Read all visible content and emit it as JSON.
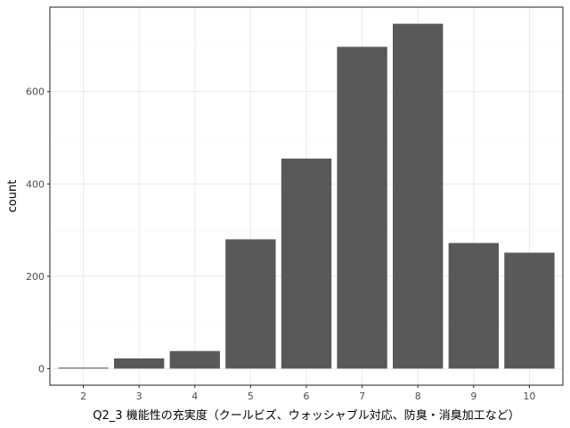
{
  "chart_data": {
    "type": "bar",
    "title": "",
    "xlabel": "Q2_3 機能性の充実度（クールビズ、ウォッシャブル対応、防臭・消臭加工など）",
    "ylabel": "count",
    "categories": [
      "2",
      "3",
      "4",
      "5",
      "6",
      "7",
      "8",
      "9",
      "10"
    ],
    "values": [
      2,
      22,
      38,
      280,
      455,
      697,
      747,
      272,
      251
    ],
    "ylim": [
      -36,
      783
    ],
    "yticks": [
      0,
      200,
      400,
      600
    ],
    "grid": true,
    "legend": "none",
    "colors": {
      "bar": "#595959",
      "panel_background": "#ffffff",
      "grid_major": "#ebebeb",
      "grid_minor": "#f5f5f5",
      "panel_border": "#333333"
    }
  }
}
